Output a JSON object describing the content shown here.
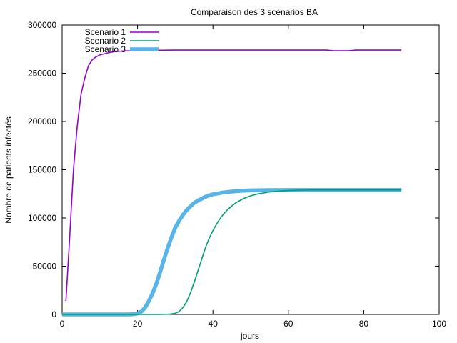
{
  "chart_data": {
    "type": "line",
    "title": "Comparaison des 3 scénarios BA",
    "xlabel": "jours",
    "ylabel": "Nombre de patients infectés",
    "xlim": [
      0,
      100
    ],
    "ylim": [
      0,
      300000
    ],
    "xticks": [
      "0",
      "20",
      "40",
      "60",
      "80",
      "100"
    ],
    "yticks": [
      "0",
      "50000",
      "100000",
      "150000",
      "200000",
      "250000",
      "300000"
    ],
    "grid": false,
    "legend_position": "top-left",
    "series": [
      {
        "name": "Scenario 1",
        "color": "#9400d3",
        "line_style": "thin",
        "x": [
          1,
          2,
          3,
          4,
          5,
          6,
          7,
          8,
          9,
          10,
          12,
          14,
          16,
          20,
          25,
          30,
          40,
          50,
          60,
          70,
          72,
          76,
          78,
          80,
          85,
          90
        ],
        "y": [
          14000,
          80000,
          150000,
          195000,
          228000,
          245000,
          258000,
          264000,
          267000,
          269000,
          271000,
          272500,
          273000,
          273500,
          273800,
          274000,
          274000,
          274000,
          274000,
          274000,
          273300,
          273300,
          274000,
          274000,
          274000,
          274000
        ]
      },
      {
        "name": "Scenario 2",
        "color": "#009e73",
        "line_style": "thin",
        "x": [
          0,
          10,
          20,
          26,
          28,
          29,
          30,
          31,
          32,
          33,
          34,
          35,
          36,
          37,
          38,
          39,
          40,
          41,
          42,
          43,
          44,
          45,
          46,
          48,
          50,
          52,
          55,
          58,
          60,
          65,
          70,
          80,
          90
        ],
        "y": [
          0,
          0,
          0,
          0,
          200,
          500,
          1200,
          3000,
          7000,
          13000,
          22000,
          33000,
          45000,
          57000,
          69000,
          79000,
          87000,
          94000,
          100000,
          105000,
          109000,
          112500,
          115500,
          120000,
          123000,
          125000,
          127000,
          128000,
          128500,
          129000,
          129000,
          129000,
          129000
        ]
      },
      {
        "name": "Scenario 3",
        "color": "#56b4e9",
        "line_style": "thick",
        "x": [
          0,
          10,
          18,
          19,
          20,
          21,
          22,
          23,
          24,
          25,
          26,
          27,
          28,
          29,
          30,
          31,
          32,
          33,
          34,
          35,
          36,
          37,
          38,
          39,
          40,
          42,
          44,
          46,
          48,
          50,
          55,
          60,
          70,
          80,
          90
        ],
        "y": [
          0,
          0,
          0,
          300,
          1000,
          3000,
          7000,
          14000,
          22000,
          32000,
          44000,
          57000,
          69000,
          80000,
          90000,
          97000,
          103000,
          108000,
          112000,
          115500,
          118000,
          120000,
          122000,
          123500,
          124500,
          126000,
          127000,
          127800,
          128300,
          128600,
          128900,
          129000,
          129000,
          129000,
          129000
        ]
      }
    ]
  }
}
